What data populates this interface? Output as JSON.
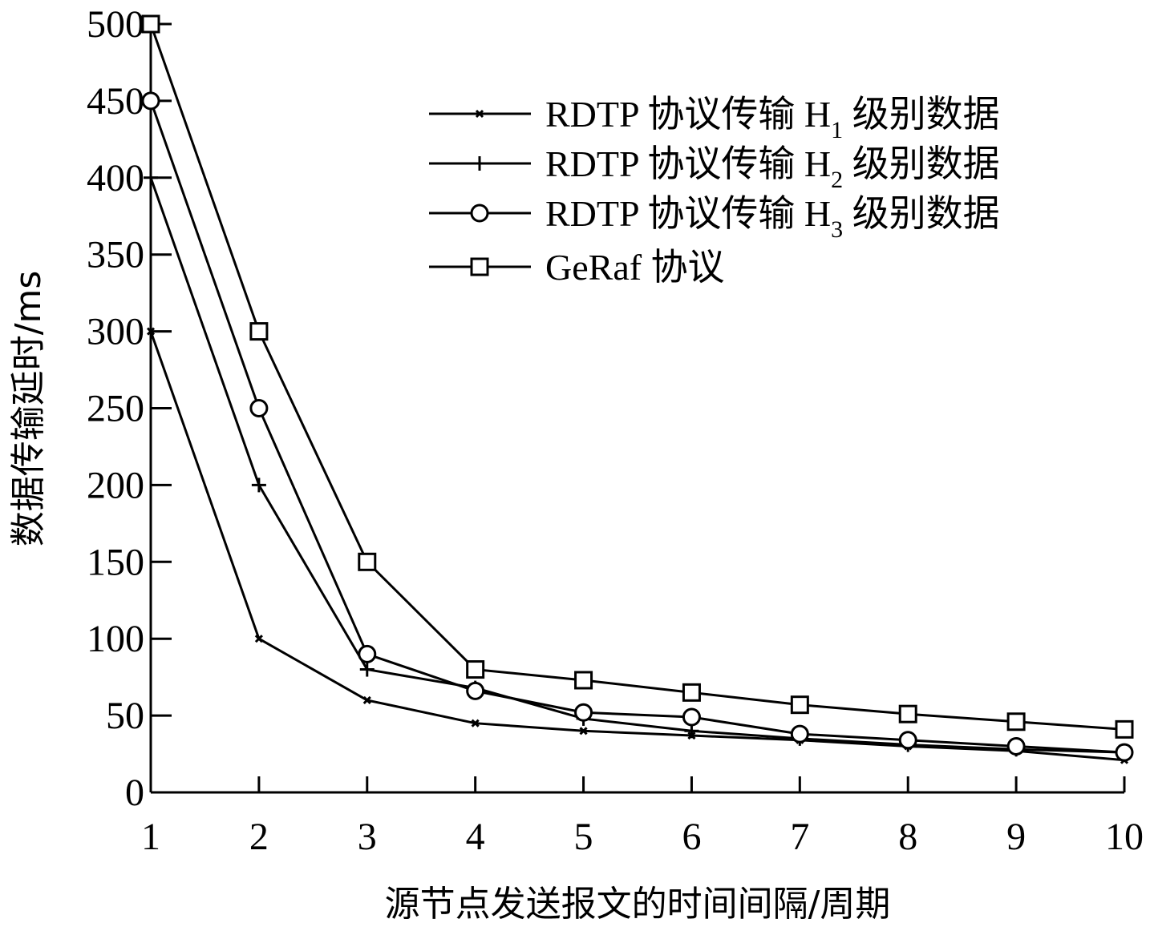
{
  "chart_data": {
    "type": "line",
    "title": "",
    "xlabel": "源节点发送报文的时间间隔/周期",
    "ylabel": "数据传输延时/ms",
    "x": [
      1,
      2,
      3,
      4,
      5,
      6,
      7,
      8,
      9,
      10
    ],
    "xlim": [
      1,
      10
    ],
    "ylim": [
      0,
      500
    ],
    "x_ticks": [
      "1",
      "2",
      "3",
      "4",
      "5",
      "6",
      "7",
      "8",
      "9",
      "10"
    ],
    "y_ticks": [
      "0",
      "50",
      "100",
      "150",
      "200",
      "250",
      "300",
      "350",
      "400",
      "450",
      "500"
    ],
    "grid": false,
    "legend_position": "top-right",
    "series": [
      {
        "name": "RDTP 协议传输 H1 级别数据",
        "legend_pre": "RDTP 协议传输 H",
        "legend_sub": "1",
        "legend_post": " 级别数据",
        "marker": "x",
        "values": [
          300,
          100,
          60,
          45,
          40,
          37,
          34,
          30,
          27,
          21
        ]
      },
      {
        "name": "RDTP 协议传输 H2 级别数据",
        "legend_pre": "RDTP 协议传输 H",
        "legend_sub": "2",
        "legend_post": " 级别数据",
        "marker": "plus",
        "values": [
          400,
          200,
          80,
          68,
          48,
          40,
          35,
          31,
          28,
          26
        ]
      },
      {
        "name": "RDTP 协议传输 H3 级别数据",
        "legend_pre": "RDTP 协议传输 H",
        "legend_sub": "3",
        "legend_post": " 级别数据",
        "marker": "circle",
        "values": [
          450,
          250,
          90,
          66,
          52,
          49,
          38,
          34,
          30,
          26
        ]
      },
      {
        "name": "GeRaf 协议",
        "legend_pre": "GeRaf 协议",
        "legend_sub": "",
        "legend_post": "",
        "marker": "square",
        "values": [
          500,
          300,
          150,
          80,
          73,
          65,
          57,
          51,
          46,
          41
        ]
      }
    ]
  }
}
